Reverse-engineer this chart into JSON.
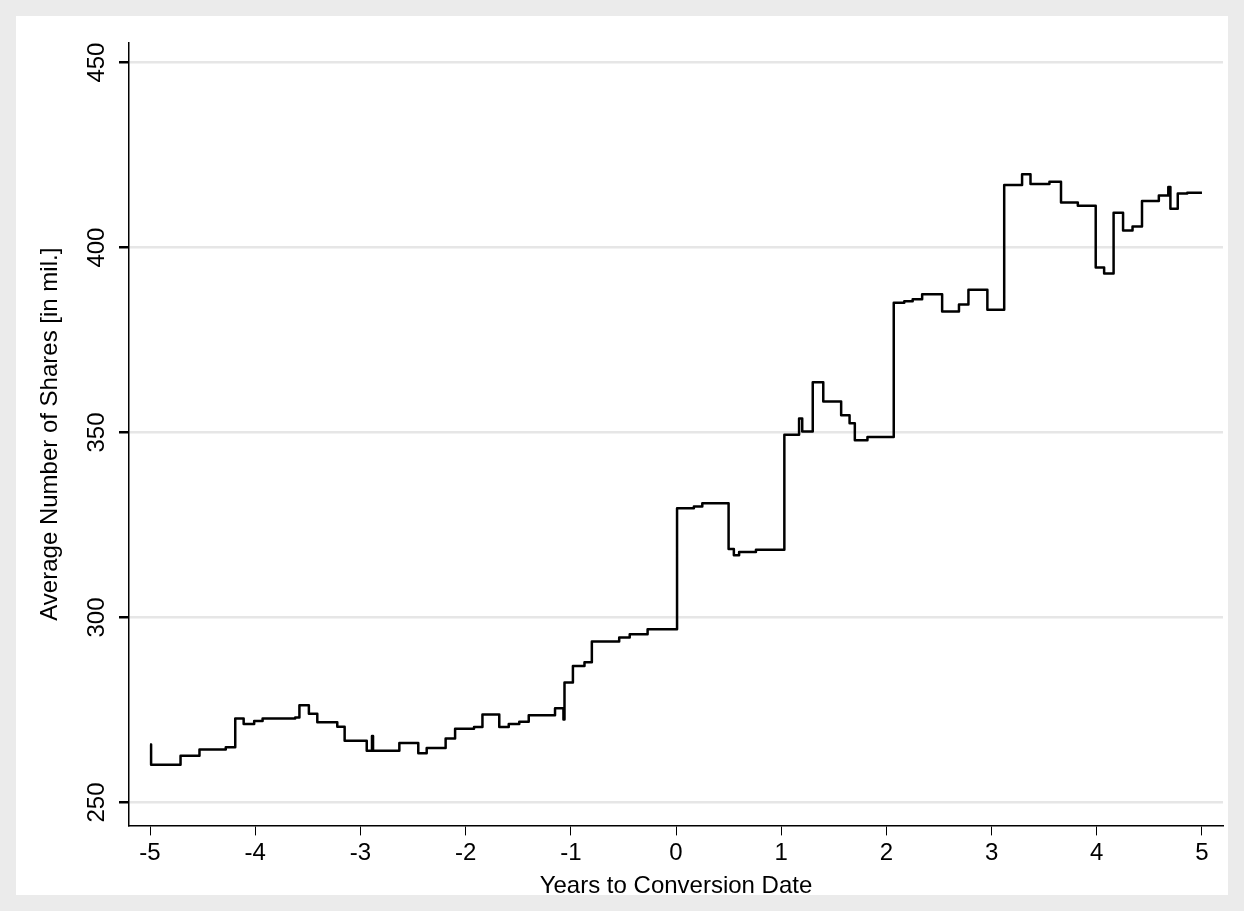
{
  "chart_data": {
    "type": "step",
    "xlabel": "Years to Conversion Date",
    "ylabel": "Average Number of Shares [in mil.]",
    "x": [
      -5.0,
      -4.99,
      -4.71,
      -4.53,
      -4.28,
      -4.19,
      -4.11,
      -4.01,
      -3.93,
      -3.62,
      -3.58,
      -3.49,
      -3.41,
      -3.22,
      -3.15,
      -2.94,
      -2.89,
      -2.88,
      -2.63,
      -2.45,
      -2.37,
      -2.19,
      -2.1,
      -1.92,
      -1.84,
      -1.68,
      -1.59,
      -1.49,
      -1.4,
      -1.15,
      -1.07,
      -1.06,
      -0.98,
      -0.87,
      -0.8,
      -0.54,
      -0.44,
      -0.27,
      0.01,
      0.17,
      0.25,
      0.5,
      0.55,
      0.6,
      0.76,
      1.03,
      1.17,
      1.2,
      1.3,
      1.4,
      1.57,
      1.65,
      1.7,
      1.82,
      2.07,
      2.17,
      2.25,
      2.34,
      2.53,
      2.69,
      2.78,
      2.96,
      3.12,
      3.29,
      3.37,
      3.55,
      3.66,
      3.82,
      3.99,
      4.07,
      4.16,
      4.25,
      4.34,
      4.43,
      4.59,
      4.68,
      4.7,
      4.77,
      4.86,
      5.0
    ],
    "series": [
      {
        "color": "#000000",
        "values": [
          265.7,
          260.2,
          262.6,
          264.3,
          264.9,
          272.7,
          271.2,
          272,
          272.7,
          273,
          276.3,
          274,
          271.7,
          270.5,
          266.7,
          264,
          268,
          264,
          266.1,
          263.3,
          264.7,
          267.3,
          269.9,
          270.4,
          273.8,
          270.4,
          271.2,
          271.8,
          273.6,
          275.5,
          272.4,
          282.4,
          286.9,
          287.9,
          293.5,
          294.6,
          295.5,
          296.8,
          329.5,
          330,
          330.9,
          318.5,
          316.8,
          317.7,
          318.3,
          349.4,
          353.8,
          350.3,
          363.6,
          358.4,
          354.7,
          352.5,
          347.9,
          348.8,
          385.1,
          385.5,
          386,
          387.4,
          382.7,
          384.6,
          388.6,
          383.2,
          416.9,
          419.8,
          417.2,
          417.8,
          412.2,
          411.3,
          394.6,
          393,
          409.4,
          404.6,
          405.7,
          412.6,
          414.1,
          416.4,
          410.5,
          414.6,
          414.8,
          414.8
        ]
      }
    ],
    "xlim": [
      -5.2,
      5.2
    ],
    "xticks": [
      -5,
      -4,
      -3,
      -2,
      -1,
      0,
      1,
      2,
      3,
      4,
      5
    ],
    "ylim": [
      243.8,
      455.3
    ],
    "yticks": [
      250,
      300,
      350,
      400,
      450
    ],
    "grid": "y",
    "legend": false,
    "marker": "none",
    "line_style": "solid"
  }
}
